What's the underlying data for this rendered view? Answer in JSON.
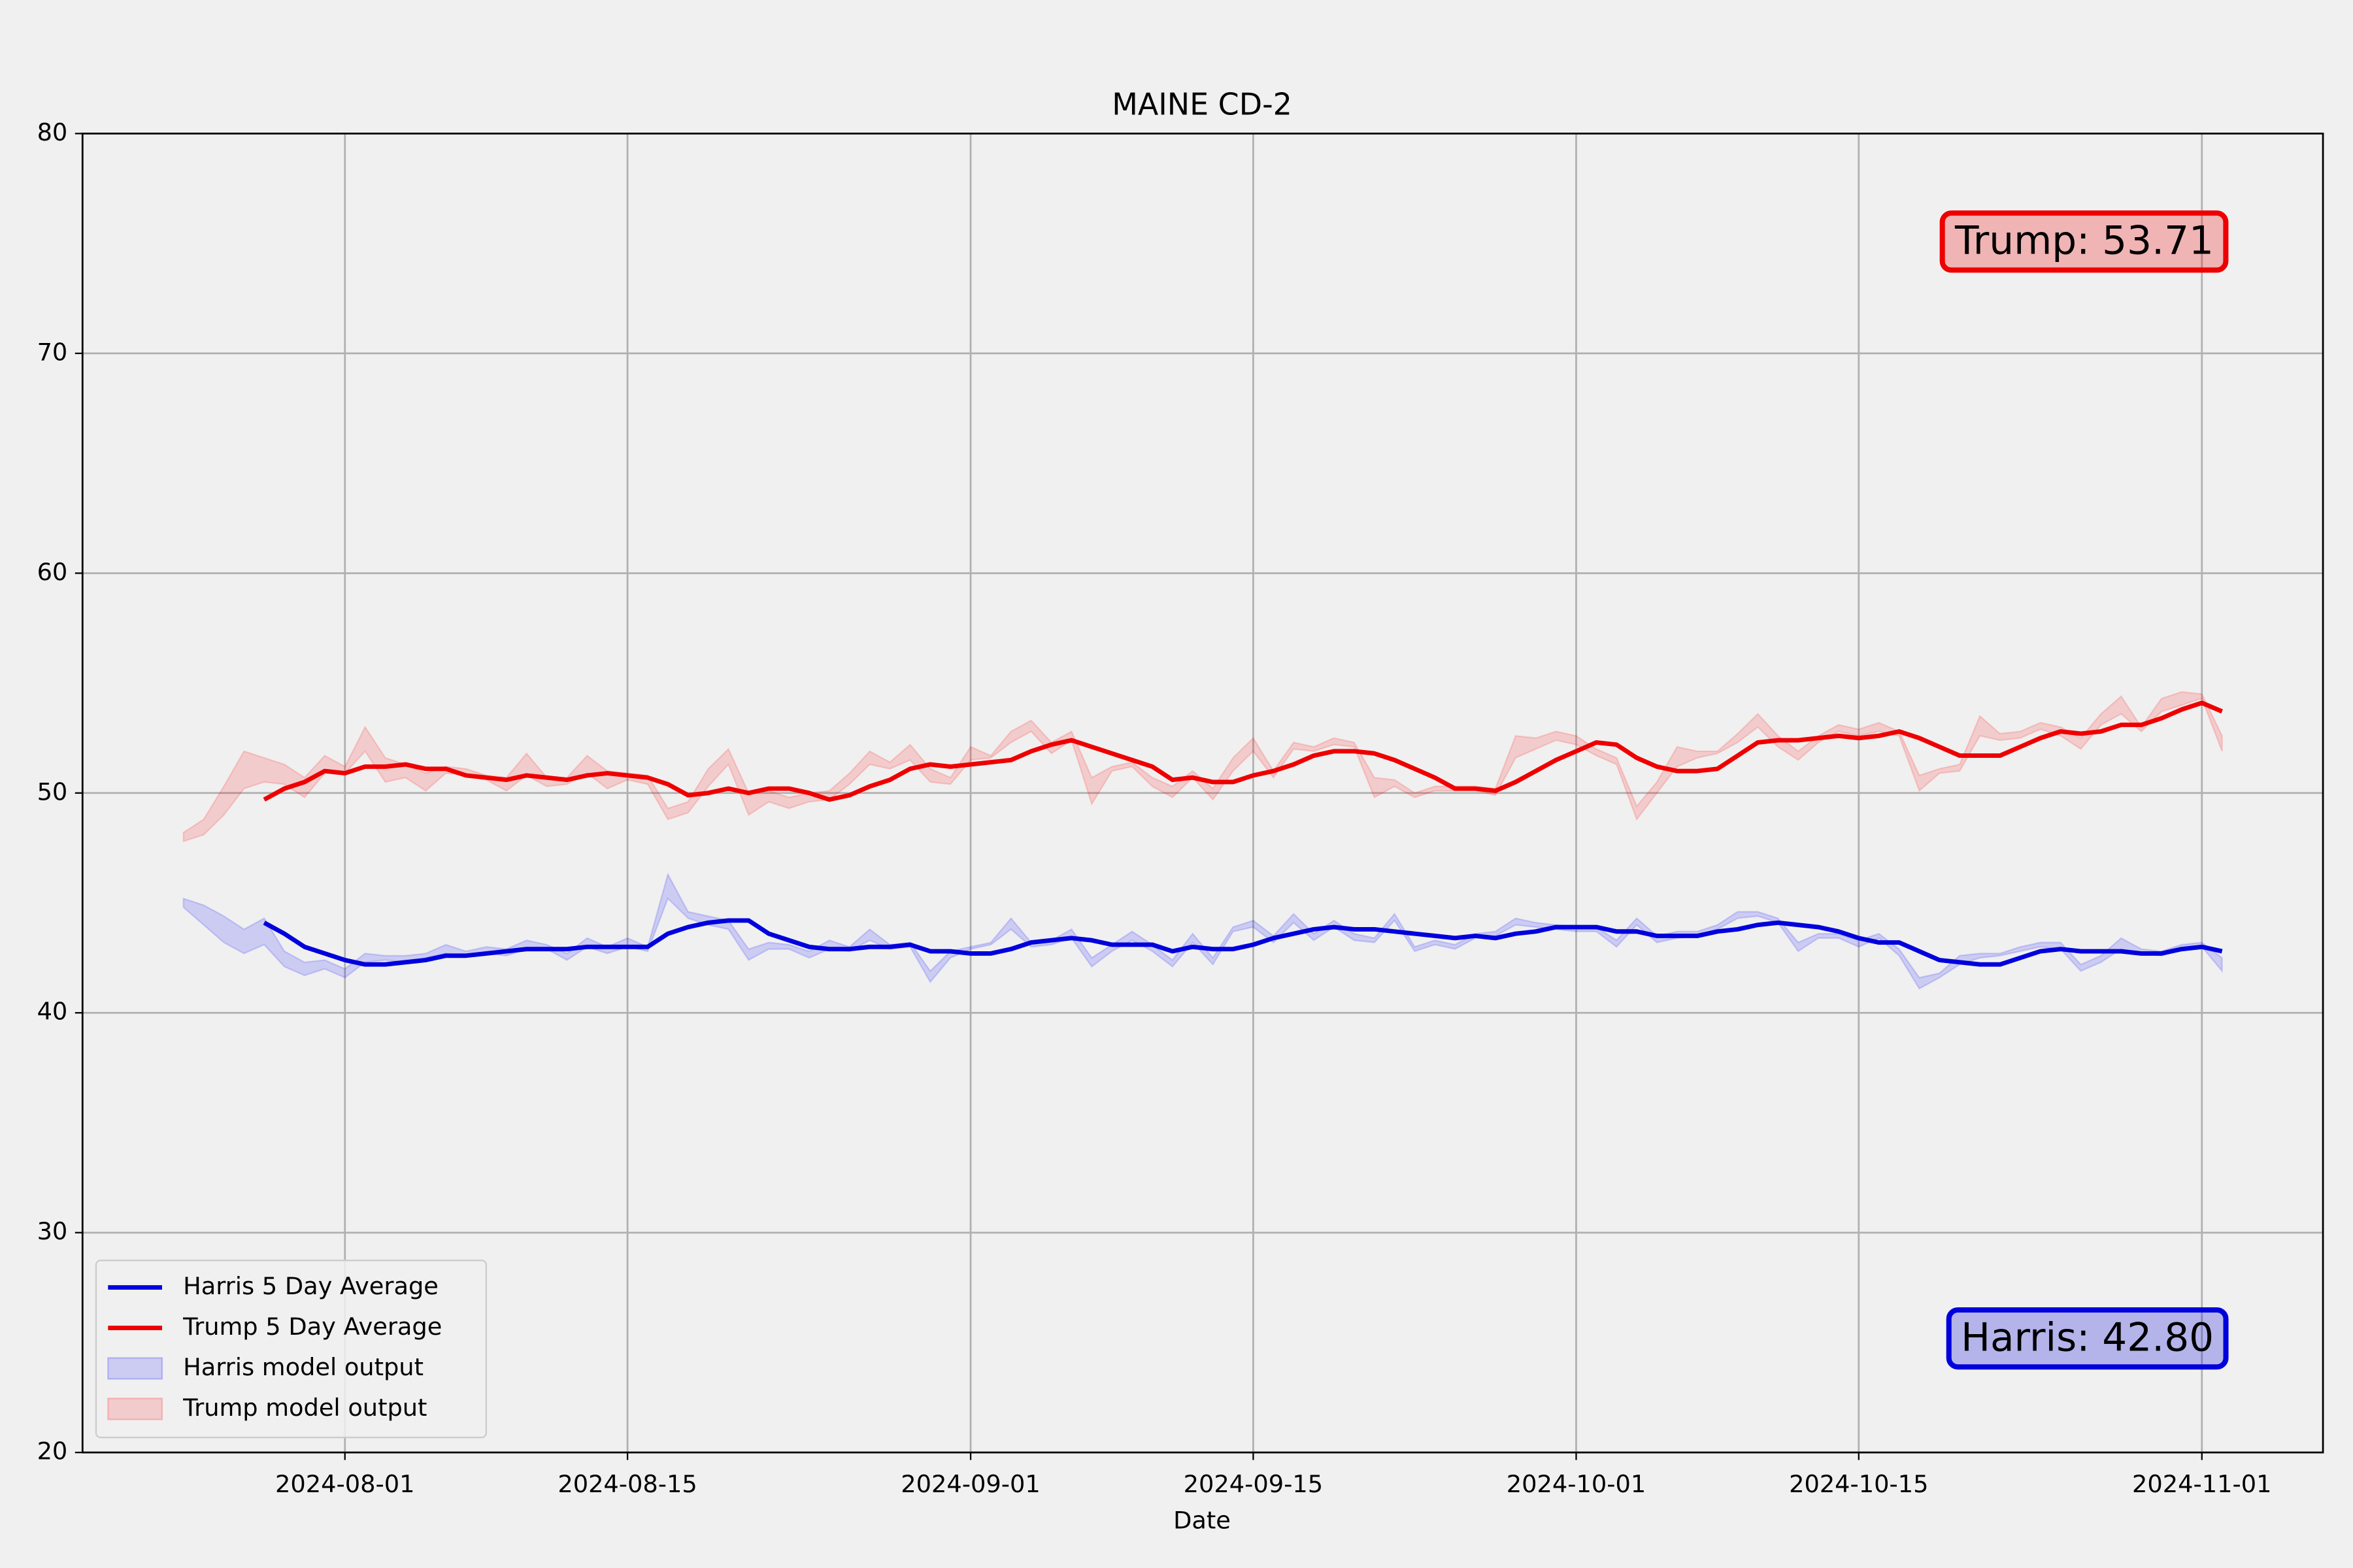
{
  "chart_data": {
    "type": "line",
    "title": "MAINE CD-2",
    "x_label": "Date",
    "x": [
      "2024-07-24",
      "2024-07-25",
      "2024-07-26",
      "2024-07-27",
      "2024-07-28",
      "2024-07-29",
      "2024-07-30",
      "2024-07-31",
      "2024-08-01",
      "2024-08-02",
      "2024-08-03",
      "2024-08-04",
      "2024-08-05",
      "2024-08-06",
      "2024-08-07",
      "2024-08-08",
      "2024-08-09",
      "2024-08-10",
      "2024-08-11",
      "2024-08-12",
      "2024-08-13",
      "2024-08-14",
      "2024-08-15",
      "2024-08-16",
      "2024-08-17",
      "2024-08-18",
      "2024-08-19",
      "2024-08-20",
      "2024-08-21",
      "2024-08-22",
      "2024-08-23",
      "2024-08-24",
      "2024-08-25",
      "2024-08-26",
      "2024-08-27",
      "2024-08-28",
      "2024-08-29",
      "2024-08-30",
      "2024-08-31",
      "2024-09-01",
      "2024-09-02",
      "2024-09-03",
      "2024-09-04",
      "2024-09-05",
      "2024-09-06",
      "2024-09-07",
      "2024-09-08",
      "2024-09-09",
      "2024-09-10",
      "2024-09-11",
      "2024-09-12",
      "2024-09-13",
      "2024-09-14",
      "2024-09-15",
      "2024-09-16",
      "2024-09-17",
      "2024-09-18",
      "2024-09-19",
      "2024-09-20",
      "2024-09-21",
      "2024-09-22",
      "2024-09-23",
      "2024-09-24",
      "2024-09-25",
      "2024-09-26",
      "2024-09-27",
      "2024-09-28",
      "2024-09-29",
      "2024-09-30",
      "2024-10-01",
      "2024-10-02",
      "2024-10-03",
      "2024-10-04",
      "2024-10-05",
      "2024-10-06",
      "2024-10-07",
      "2024-10-08",
      "2024-10-09",
      "2024-10-10",
      "2024-10-11",
      "2024-10-12",
      "2024-10-13",
      "2024-10-14",
      "2024-10-15",
      "2024-10-16",
      "2024-10-17",
      "2024-10-18",
      "2024-10-19",
      "2024-10-20",
      "2024-10-21",
      "2024-10-22",
      "2024-10-23",
      "2024-10-24",
      "2024-10-25",
      "2024-10-26",
      "2024-10-27",
      "2024-10-28",
      "2024-10-29",
      "2024-10-30",
      "2024-10-31",
      "2024-11-01",
      "2024-11-02"
    ],
    "series": [
      {
        "name": "Harris 5 Day Average",
        "type": "line",
        "color": "#0000dd",
        "values": [
          null,
          null,
          null,
          null,
          44.1,
          43.6,
          43.0,
          42.7,
          42.4,
          42.2,
          42.2,
          42.3,
          42.4,
          42.6,
          42.6,
          42.7,
          42.8,
          42.9,
          42.9,
          42.9,
          43.0,
          43.0,
          43.0,
          43.0,
          43.6,
          43.9,
          44.1,
          44.2,
          44.2,
          43.6,
          43.3,
          43.0,
          42.9,
          42.9,
          43.0,
          43.0,
          43.1,
          42.8,
          42.8,
          42.7,
          42.7,
          42.9,
          43.2,
          43.3,
          43.4,
          43.3,
          43.1,
          43.1,
          43.1,
          42.8,
          43.0,
          42.9,
          42.9,
          43.1,
          43.4,
          43.6,
          43.8,
          43.9,
          43.8,
          43.8,
          43.7,
          43.6,
          43.5,
          43.4,
          43.5,
          43.4,
          43.6,
          43.7,
          43.9,
          43.9,
          43.9,
          43.7,
          43.7,
          43.5,
          43.5,
          43.5,
          43.7,
          43.8,
          44.0,
          44.1,
          44.0,
          43.9,
          43.7,
          43.4,
          43.2,
          43.2,
          42.8,
          42.4,
          42.3,
          42.2,
          42.2,
          42.5,
          42.8,
          42.9,
          42.8,
          42.8,
          42.8,
          42.7,
          42.7,
          42.9,
          43.0,
          42.8
        ]
      },
      {
        "name": "Trump 5 Day Average",
        "type": "line",
        "color": "#ee0000",
        "values": [
          null,
          null,
          null,
          null,
          49.7,
          50.2,
          50.5,
          51.0,
          50.9,
          51.2,
          51.2,
          51.3,
          51.1,
          51.1,
          50.8,
          50.7,
          50.6,
          50.8,
          50.7,
          50.6,
          50.8,
          50.9,
          50.8,
          50.7,
          50.4,
          49.9,
          50.0,
          50.2,
          50.0,
          50.2,
          50.2,
          50.0,
          49.7,
          49.9,
          50.3,
          50.6,
          51.1,
          51.3,
          51.2,
          51.3,
          51.4,
          51.5,
          51.9,
          52.2,
          52.4,
          52.1,
          51.8,
          51.5,
          51.2,
          50.6,
          50.7,
          50.5,
          50.5,
          50.8,
          51.0,
          51.3,
          51.7,
          51.9,
          51.9,
          51.8,
          51.5,
          51.1,
          50.7,
          50.2,
          50.2,
          50.1,
          50.5,
          51.0,
          51.5,
          51.9,
          52.3,
          52.2,
          51.6,
          51.2,
          51.0,
          51.0,
          51.1,
          51.7,
          52.3,
          52.4,
          52.4,
          52.5,
          52.6,
          52.5,
          52.6,
          52.8,
          52.5,
          52.1,
          51.7,
          51.7,
          51.7,
          52.1,
          52.5,
          52.8,
          52.7,
          52.8,
          53.1,
          53.1,
          53.4,
          53.8,
          54.1,
          53.71
        ]
      },
      {
        "name": "Harris model output",
        "type": "band",
        "color": "#0000ff",
        "lower": [
          44.8,
          44.0,
          43.2,
          42.7,
          43.1,
          42.1,
          41.7,
          42.0,
          41.6,
          42.3,
          42.4,
          42.3,
          42.5,
          42.7,
          42.6,
          42.7,
          42.6,
          42.9,
          42.9,
          42.4,
          43.0,
          42.7,
          43.0,
          42.8,
          45.2,
          44.3,
          44.0,
          43.8,
          42.4,
          42.9,
          42.9,
          42.5,
          42.9,
          42.8,
          43.3,
          42.9,
          43.0,
          41.4,
          42.5,
          42.9,
          43.1,
          43.8,
          43.0,
          43.1,
          43.4,
          42.1,
          42.8,
          43.3,
          42.8,
          42.1,
          43.2,
          42.2,
          43.7,
          43.9,
          43.2,
          44.1,
          43.3,
          43.9,
          43.3,
          43.2,
          44.2,
          42.8,
          43.1,
          42.9,
          43.4,
          43.5,
          44.0,
          43.9,
          43.8,
          43.7,
          43.7,
          43.0,
          44.0,
          43.2,
          43.4,
          43.5,
          43.8,
          44.3,
          44.4,
          44.1,
          42.8,
          43.4,
          43.4,
          43.0,
          43.4,
          42.6,
          41.1,
          41.6,
          42.2,
          42.5,
          42.6,
          42.8,
          43.0,
          42.9,
          41.9,
          42.3,
          42.9,
          42.7,
          42.6,
          42.9,
          43.0,
          41.9
        ],
        "upper": [
          45.2,
          44.9,
          44.4,
          43.8,
          44.3,
          42.8,
          42.3,
          42.4,
          42.0,
          42.7,
          42.6,
          42.6,
          42.7,
          43.1,
          42.8,
          43.0,
          42.9,
          43.3,
          43.1,
          42.7,
          43.4,
          43.0,
          43.4,
          43.0,
          46.3,
          44.6,
          44.4,
          44.2,
          42.9,
          43.2,
          43.1,
          42.8,
          43.3,
          43.0,
          43.8,
          43.1,
          43.2,
          41.9,
          42.8,
          43.0,
          43.2,
          44.3,
          43.2,
          43.3,
          43.8,
          42.5,
          43.1,
          43.7,
          43.1,
          42.4,
          43.6,
          42.5,
          43.9,
          44.2,
          43.5,
          44.5,
          43.6,
          44.2,
          43.6,
          43.4,
          44.5,
          43.0,
          43.3,
          43.1,
          43.6,
          43.7,
          44.3,
          44.1,
          44.0,
          43.9,
          43.9,
          43.3,
          44.3,
          43.5,
          43.7,
          43.7,
          44.0,
          44.6,
          44.6,
          44.3,
          43.2,
          43.6,
          43.6,
          43.3,
          43.6,
          42.9,
          41.6,
          41.8,
          42.6,
          42.7,
          42.7,
          43.0,
          43.2,
          43.2,
          42.2,
          42.6,
          43.4,
          42.9,
          42.8,
          43.1,
          43.2,
          42.5
        ]
      },
      {
        "name": "Trump model output",
        "type": "band",
        "color": "#ff0000",
        "lower": [
          47.8,
          48.1,
          49.0,
          50.2,
          50.5,
          50.4,
          49.8,
          50.9,
          50.9,
          51.9,
          50.5,
          50.7,
          50.1,
          50.9,
          50.8,
          50.6,
          50.1,
          50.8,
          50.3,
          50.4,
          50.9,
          50.2,
          50.6,
          50.4,
          48.8,
          49.1,
          50.3,
          51.3,
          49.0,
          49.6,
          49.3,
          49.6,
          49.7,
          50.4,
          51.3,
          51.1,
          51.5,
          50.5,
          50.4,
          51.5,
          51.6,
          52.3,
          52.8,
          51.8,
          52.4,
          49.5,
          51.0,
          51.2,
          50.3,
          49.8,
          50.7,
          49.7,
          51.0,
          51.9,
          50.7,
          52.0,
          51.9,
          52.2,
          52.1,
          49.8,
          50.3,
          49.8,
          50.1,
          50.1,
          50.1,
          49.9,
          51.6,
          52.0,
          52.4,
          52.2,
          51.7,
          51.3,
          48.8,
          50.0,
          51.2,
          51.6,
          51.8,
          52.3,
          53.0,
          52.1,
          51.5,
          52.3,
          52.8,
          52.6,
          52.8,
          52.6,
          50.1,
          50.9,
          51.0,
          52.6,
          52.4,
          52.5,
          52.9,
          52.6,
          52.0,
          53.1,
          53.6,
          52.8,
          53.7,
          54.0,
          54.3,
          51.9
        ],
        "upper": [
          48.2,
          48.8,
          50.3,
          51.9,
          51.6,
          51.3,
          50.7,
          51.7,
          51.2,
          53.0,
          51.6,
          51.3,
          50.9,
          51.2,
          51.1,
          50.8,
          50.7,
          51.8,
          50.7,
          50.7,
          51.7,
          51.0,
          50.9,
          50.8,
          49.3,
          49.6,
          51.1,
          52.0,
          50.0,
          50.1,
          49.8,
          50.0,
          50.1,
          50.9,
          51.9,
          51.4,
          52.2,
          51.1,
          50.7,
          52.1,
          51.7,
          52.8,
          53.3,
          52.3,
          52.8,
          50.7,
          51.2,
          51.4,
          50.7,
          50.3,
          51.0,
          50.2,
          51.6,
          52.5,
          51.0,
          52.3,
          52.1,
          52.5,
          52.3,
          50.7,
          50.6,
          50.0,
          50.3,
          50.3,
          50.3,
          50.2,
          52.6,
          52.5,
          52.8,
          52.6,
          52.0,
          51.6,
          49.4,
          50.5,
          52.1,
          51.9,
          51.9,
          52.7,
          53.6,
          52.6,
          51.9,
          52.6,
          53.1,
          52.9,
          53.2,
          52.8,
          50.8,
          51.1,
          51.3,
          53.5,
          52.7,
          52.8,
          53.2,
          53.0,
          52.5,
          53.6,
          54.4,
          53.0,
          54.3,
          54.6,
          54.5,
          52.6
        ]
      }
    ],
    "xlim": [
      "2024-07-19",
      "2024-11-07"
    ],
    "xticks": [
      "2024-08-01",
      "2024-08-15",
      "2024-09-01",
      "2024-09-15",
      "2024-10-01",
      "2024-10-15",
      "2024-11-01"
    ],
    "ylim": [
      20,
      80
    ],
    "yticks": [
      20,
      30,
      40,
      50,
      60,
      70,
      80
    ],
    "grid": true,
    "legend_position": "lower-left",
    "annotations": [
      {
        "text": "Trump: 53.71",
        "color": "#ee0000"
      },
      {
        "text": "Harris: 42.80",
        "color": "#0000dd"
      }
    ]
  }
}
